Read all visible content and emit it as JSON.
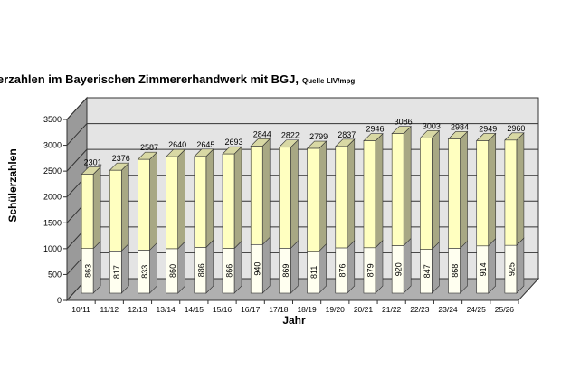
{
  "chart_data": {
    "type": "bar",
    "stacked": true,
    "three_d": true,
    "title": "Schülerzahlen im Bayerischen Zimmererhandwerk mit BGJ,",
    "source_note": "Quelle LIV/mpg",
    "xlabel": "Jahr",
    "ylabel": "Schülerzahlen",
    "ylim": [
      0,
      3500
    ],
    "yticks": [
      0,
      500,
      1000,
      1500,
      2000,
      2500,
      3000,
      3500
    ],
    "grid": true,
    "legend": "none",
    "categories": [
      "10/11",
      "11/12",
      "12/13",
      "13/14",
      "14/15",
      "15/16",
      "16/17",
      "17/18",
      "18/19",
      "19/20",
      "20/21",
      "21/22",
      "22/23",
      "23/24",
      "24/25",
      "25/26"
    ],
    "series": [
      {
        "values": [
          863,
          817,
          833,
          860,
          886,
          866,
          940,
          869,
          811,
          876,
          879,
          920,
          847,
          868,
          914,
          925
        ],
        "color": "#fffff0"
      },
      {
        "values": [
          1438,
          1559,
          1754,
          1780,
          1759,
          1827,
          1904,
          1953,
          1988,
          1961,
          2067,
          2166,
          2156,
          2116,
          2035,
          2035
        ],
        "color": "#ffffc0"
      }
    ],
    "totals": [
      2301,
      2376,
      2587,
      2640,
      2645,
      2693,
      2844,
      2822,
      2799,
      2837,
      2946,
      3086,
      3003,
      2984,
      2949,
      2960
    ],
    "colors": {
      "wall": "#e4e4e4",
      "side_wall": "#9a9a9a",
      "floor": "#b0b0b0",
      "bar_side": "#a8a884",
      "bar_top": "#d8d8a4"
    }
  }
}
